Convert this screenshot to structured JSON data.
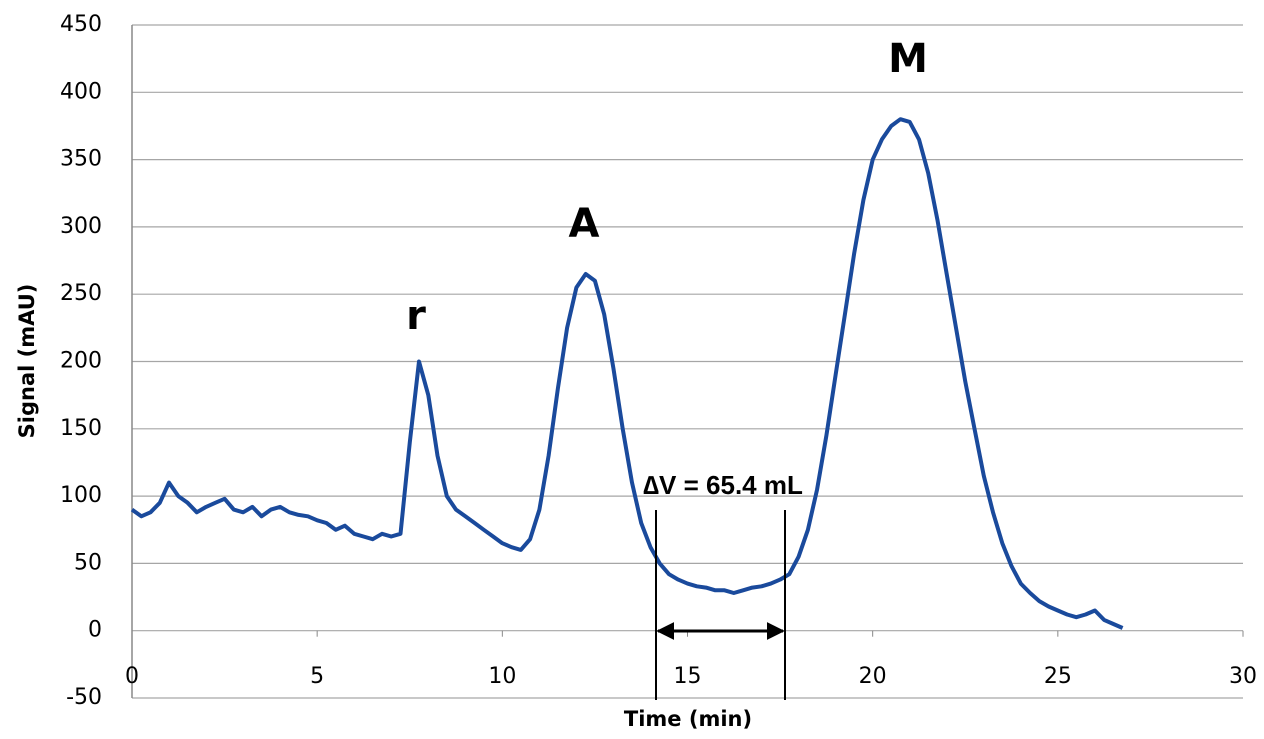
{
  "chart_data": {
    "type": "line",
    "xlabel": "Time (min)",
    "ylabel": "Signal (mAU)",
    "x": [
      0,
      0.25,
      0.5,
      0.75,
      1,
      1.25,
      1.5,
      1.75,
      2,
      2.25,
      2.5,
      2.75,
      3,
      3.25,
      3.5,
      3.75,
      4,
      4.25,
      4.5,
      4.75,
      5,
      5.25,
      5.5,
      5.75,
      6,
      6.25,
      6.5,
      6.75,
      7,
      7.25,
      7.5,
      7.75,
      8,
      8.25,
      8.5,
      8.75,
      9,
      9.25,
      9.5,
      9.75,
      10,
      10.25,
      10.5,
      10.75,
      11,
      11.25,
      11.5,
      11.75,
      12,
      12.25,
      12.5,
      12.75,
      13,
      13.25,
      13.5,
      13.75,
      14,
      14.25,
      14.5,
      14.75,
      15,
      15.25,
      15.5,
      15.75,
      16,
      16.25,
      16.5,
      16.75,
      17,
      17.25,
      17.5,
      17.75,
      18,
      18.25,
      18.5,
      18.75,
      19,
      19.25,
      19.5,
      19.75,
      20,
      20.25,
      20.5,
      20.75,
      21,
      21.25,
      21.5,
      21.75,
      22,
      22.25,
      22.5,
      22.75,
      23,
      23.25,
      23.5,
      23.75,
      24,
      24.25,
      24.5,
      24.75,
      25,
      25.25,
      25.5,
      25.75,
      26,
      26.25,
      26.5,
      26.75
    ],
    "values": [
      90,
      85,
      88,
      95,
      110,
      100,
      95,
      88,
      92,
      95,
      98,
      90,
      88,
      92,
      85,
      90,
      92,
      88,
      86,
      85,
      82,
      80,
      75,
      78,
      72,
      70,
      68,
      72,
      70,
      72,
      140,
      200,
      175,
      130,
      100,
      90,
      85,
      80,
      75,
      70,
      65,
      62,
      60,
      68,
      90,
      130,
      180,
      225,
      255,
      265,
      260,
      235,
      195,
      150,
      110,
      80,
      62,
      50,
      42,
      38,
      35,
      33,
      32,
      30,
      30,
      28,
      30,
      32,
      33,
      35,
      38,
      42,
      55,
      75,
      105,
      145,
      190,
      235,
      280,
      320,
      350,
      365,
      375,
      380,
      378,
      365,
      340,
      305,
      265,
      225,
      185,
      150,
      115,
      88,
      65,
      48,
      35,
      28,
      22,
      18,
      15,
      12,
      10,
      12,
      15,
      8,
      5,
      2
    ],
    "color": "#1a4a9c",
    "xlim": [
      0,
      30
    ],
    "xticks": [
      0,
      5,
      10,
      15,
      20,
      25,
      30
    ],
    "ylim": [
      -50,
      450
    ],
    "yticks": [
      -50,
      0,
      50,
      100,
      150,
      200,
      250,
      300,
      350,
      400,
      450
    ],
    "grid": true,
    "annotations": [
      "r",
      "A",
      "M",
      "∆V = 65.4 mL"
    ]
  }
}
